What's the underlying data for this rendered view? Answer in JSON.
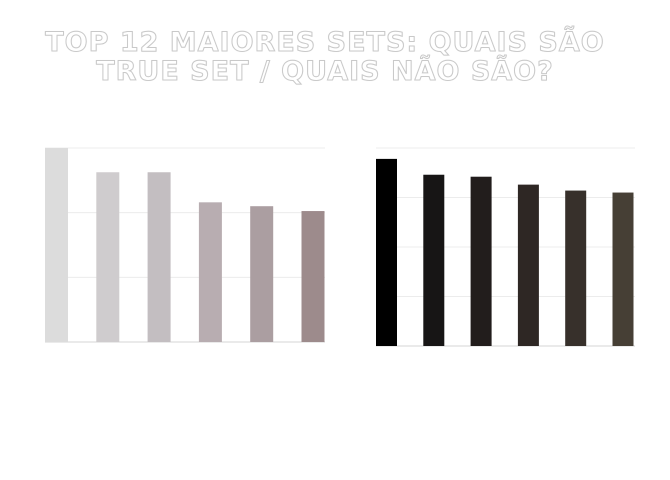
{
  "title": "TOP 12 MAIORES SETS: QUAIS SÃO TRUE SET / QUAIS NÃO SÃO?",
  "chart_data": [
    {
      "type": "bar",
      "categories": [
        "",
        "",
        "",
        "",
        "",
        ""
      ],
      "values": [
        100,
        87.5,
        87.5,
        72,
        70,
        67.5
      ],
      "ylim": [
        0,
        100
      ],
      "grid": true,
      "colors": [
        "#dcdcdc",
        "#cfccce",
        "#c3bec1",
        "#b8adb1",
        "#ab9ea1",
        "#9d8b8c"
      ]
    },
    {
      "type": "bar",
      "categories": [
        "",
        "",
        "",
        "",
        "",
        ""
      ],
      "values": [
        94.5,
        86.5,
        85.5,
        81.5,
        78.5,
        77.5
      ],
      "ylim": [
        0,
        100
      ],
      "grid": true,
      "colors": [
        "#000000",
        "#171515",
        "#221d1c",
        "#2e2724",
        "#37302b",
        "#463f35"
      ]
    }
  ]
}
